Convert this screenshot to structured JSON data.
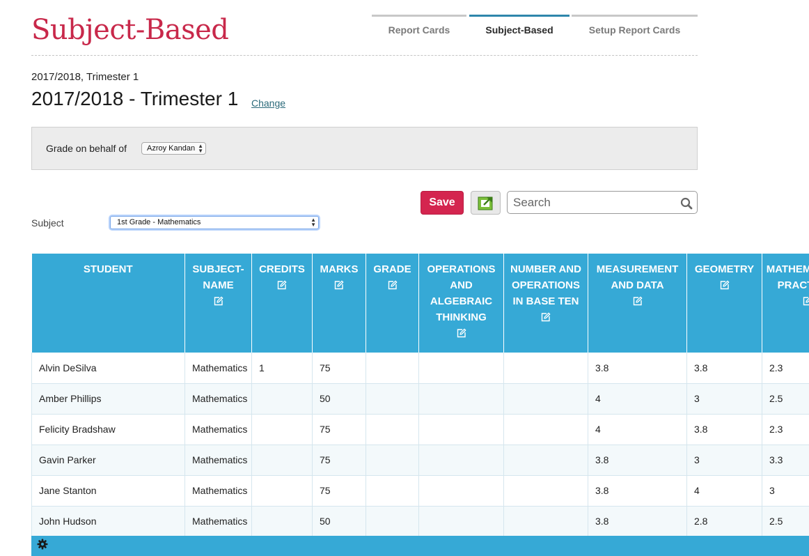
{
  "header": {
    "title": "Subject-Based",
    "tabs": [
      {
        "label": "Report Cards",
        "active": false
      },
      {
        "label": "Subject-Based",
        "active": true
      },
      {
        "label": "Setup Report Cards",
        "active": false
      }
    ]
  },
  "term": {
    "small": "2017/2018, Trimester 1",
    "big": "2017/2018 - Trimester 1",
    "change_label": "Change"
  },
  "behalf": {
    "label": "Grade on behalf of",
    "selected": "Azroy Kandan"
  },
  "toolbar": {
    "save_label": "Save",
    "search_placeholder": "Search"
  },
  "subject": {
    "label": "Subject",
    "selected": "1st Grade - Mathematics"
  },
  "grid": {
    "columns": [
      {
        "label": "STUDENT",
        "editable": false
      },
      {
        "label": "SUBJECT-NAME",
        "editable": true
      },
      {
        "label": "CREDITS",
        "editable": true
      },
      {
        "label": "MARKS",
        "editable": true
      },
      {
        "label": "GRADE",
        "editable": true
      },
      {
        "label": "OPERATIONS AND ALGEBRAIC THINKING",
        "editable": true
      },
      {
        "label": "NUMBER AND OPERATIONS IN BASE TEN",
        "editable": true
      },
      {
        "label": "MEASUREMENT AND DATA",
        "editable": true
      },
      {
        "label": "GEOMETRY",
        "editable": true
      },
      {
        "label": "MATHEMATICAL PRACTICES",
        "editable": true
      }
    ],
    "rows": [
      [
        "Alvin DeSilva",
        "Mathematics",
        "1",
        "75",
        "",
        "",
        "",
        "3.8",
        "3.8",
        "2.3"
      ],
      [
        "Amber Phillips",
        "Mathematics",
        "",
        "50",
        "",
        "",
        "",
        "4",
        "3",
        "2.5"
      ],
      [
        "Felicity Bradshaw",
        "Mathematics",
        "",
        "75",
        "",
        "",
        "",
        "4",
        "3.8",
        "2.3"
      ],
      [
        "Gavin Parker",
        "Mathematics",
        "",
        "75",
        "",
        "",
        "",
        "3.8",
        "3",
        "3.3"
      ],
      [
        "Jane Stanton",
        "Mathematics",
        "",
        "75",
        "",
        "",
        "",
        "3.8",
        "4",
        "3"
      ],
      [
        "John Hudson",
        "Mathematics",
        "",
        "50",
        "",
        "",
        "",
        "3.8",
        "2.8",
        "2.5"
      ]
    ]
  },
  "colors": {
    "title": "#c8284a",
    "header_blue": "#36a9d6",
    "save_button": "#d4254f",
    "active_tab": "#2e86ab"
  },
  "icons": {
    "export": "export-icon",
    "search": "search-icon",
    "edit": "edit-icon",
    "settings": "gear-icon"
  }
}
